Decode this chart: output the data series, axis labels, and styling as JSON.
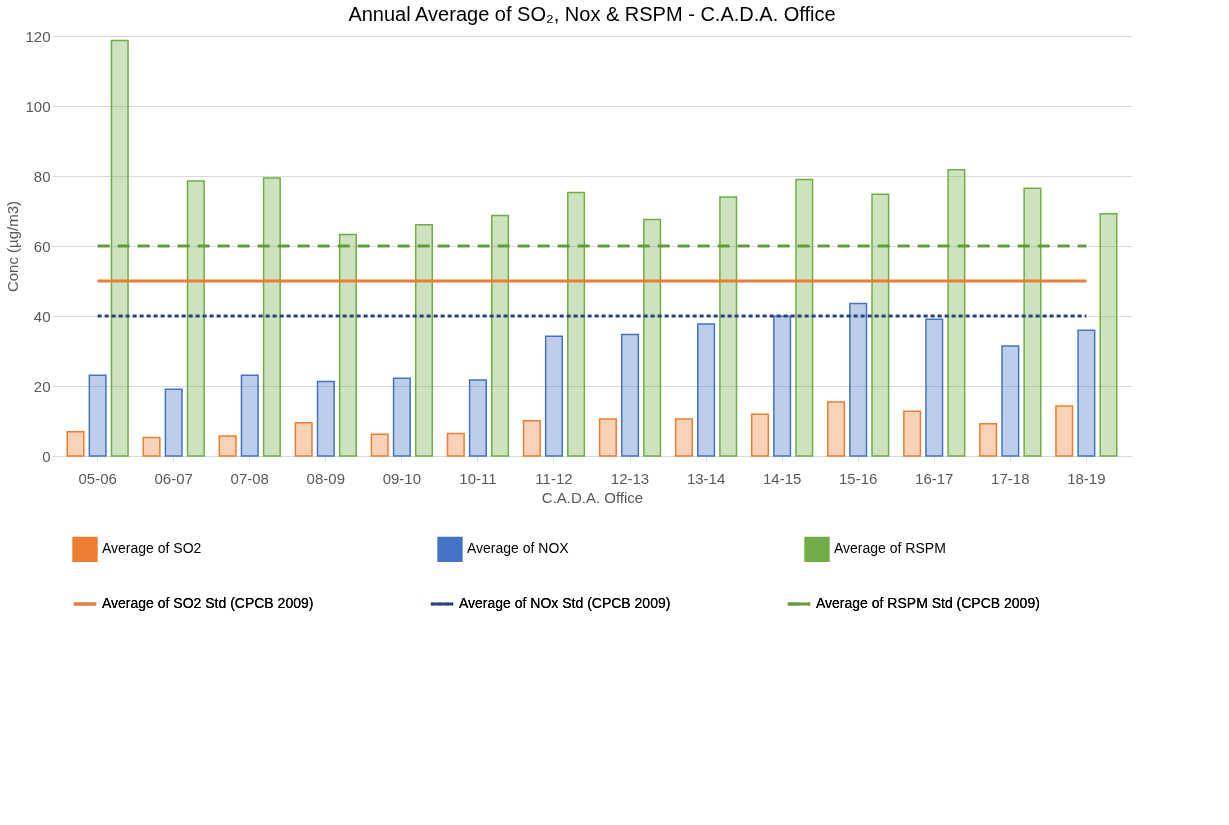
{
  "chart_data": {
    "type": "bar",
    "title": "Annual Average of SO₂, Nox & RSPM - C.A.D.A. Office",
    "xlabel": "C.A.D.A. Office",
    "ylabel": "Conc (µg/m3)",
    "categories": [
      "05-06",
      "06-07",
      "07-08",
      "08-09",
      "09-10",
      "10-11",
      "11-12",
      "12-13",
      "13-14",
      "14-15",
      "15-16",
      "16-17",
      "17-18",
      "18-19"
    ],
    "series": [
      {
        "name": "Average of SO2",
        "color": "#ed7d31",
        "values": [
          6.9,
          5.3,
          5.7,
          9.5,
          6.2,
          6.4,
          10.1,
          10.6,
          10.6,
          11.9,
          15.4,
          12.8,
          9.2,
          14.3
        ]
      },
      {
        "name": "Average of NOX",
        "color": "#4472c4",
        "values": [
          23.1,
          19.1,
          23.1,
          21.3,
          22.2,
          21.7,
          34.2,
          34.7,
          37.7,
          39.9,
          43.6,
          39.1,
          31.4,
          35.9
        ]
      },
      {
        "name": "Average of RSPM",
        "color": "#70ad47",
        "values": [
          118.7,
          78.6,
          79.4,
          63.3,
          66.1,
          68.7,
          75.3,
          67.6,
          74.0,
          79.0,
          74.8,
          81.8,
          76.5,
          69.2
        ]
      },
      {
        "name": "Average of SO2 Std (CPCB 2009)",
        "type": "line",
        "line_style": "solid",
        "color": "#ed7d31",
        "values": [
          50,
          50,
          50,
          50,
          50,
          50,
          50,
          50,
          50,
          50,
          50,
          50,
          50,
          50
        ]
      },
      {
        "name": "Average of NOx Std (CPCB 2009)",
        "type": "line",
        "line_style": "dotted",
        "color": "#264478",
        "values": [
          40,
          40,
          40,
          40,
          40,
          40,
          40,
          40,
          40,
          40,
          40,
          40,
          40,
          40
        ]
      },
      {
        "name": "Average of RSPM Std (CPCB 2009)",
        "type": "line",
        "line_style": "dashed",
        "color": "#5f9e37",
        "values": [
          60,
          60,
          60,
          60,
          60,
          60,
          60,
          60,
          60,
          60,
          60,
          60,
          60,
          60
        ]
      }
    ],
    "ylim": [
      0,
      120
    ],
    "yticks": [
      0,
      20,
      40,
      60,
      80,
      100,
      120
    ],
    "grid": "y",
    "legend": "bottom",
    "marker": "none"
  }
}
